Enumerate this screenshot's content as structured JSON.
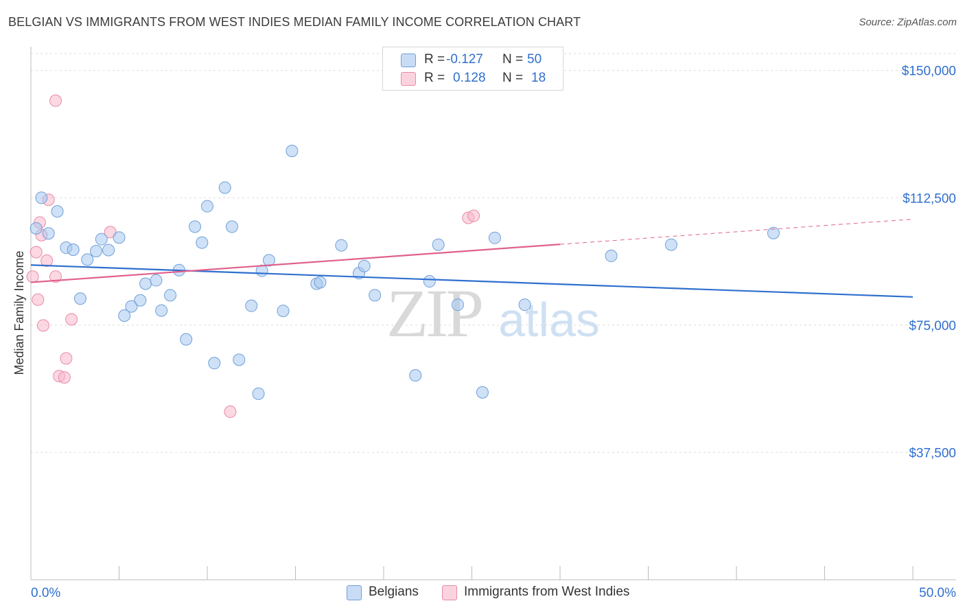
{
  "title": "BELGIAN VS IMMIGRANTS FROM WEST INDIES MEDIAN FAMILY INCOME CORRELATION CHART",
  "source": "Source: ZipAtlas.com",
  "watermark": {
    "zip": "ZIP",
    "atlas": "atlas"
  },
  "legend": {
    "rows": [
      {
        "r_label": "R =",
        "r_value": "-0.127",
        "n_label": "N =",
        "n_value": "50",
        "color": "#a8c8f0"
      },
      {
        "r_label": "R =",
        "r_value": "0.128",
        "n_label": "N =",
        "n_value": "18",
        "color": "#f7b8ca"
      }
    ]
  },
  "bottom_legend": {
    "belgians": "Belgians",
    "west_indies": "Immigrants from West Indies"
  },
  "colors": {
    "belgian_fill": "#a8c8f0",
    "belgian_stroke": "#6f9fd8",
    "belgian_line": "#2f6fce",
    "wi_fill": "#f7b8ca",
    "wi_stroke": "#e88aa8",
    "wi_line": "#e0608c",
    "axis_label": "#2f6fce",
    "grid": "#d9d9d9"
  },
  "chart_data": {
    "type": "scatter",
    "title": "BELGIAN VS IMMIGRANTS FROM WEST INDIES MEDIAN FAMILY INCOME CORRELATION CHART",
    "xlabel": "",
    "ylabel": "Median Family Income",
    "xlim": [
      0,
      50
    ],
    "ylim": [
      0,
      155000
    ],
    "x_tick_labels": [
      "0.0%",
      "50.0%"
    ],
    "y_ticks": [
      37500,
      75000,
      112500,
      150000
    ],
    "y_tick_labels": [
      "$37,500",
      "$75,000",
      "$112,500",
      "$150,000"
    ],
    "grid": true,
    "legend_position": "top-center",
    "series": [
      {
        "name": "Belgians",
        "r": -0.127,
        "n": 50,
        "trend": {
          "x": [
            0,
            50
          ],
          "y": [
            92700,
            83300
          ]
        },
        "points": [
          [
            0.3,
            103500
          ],
          [
            0.6,
            112500
          ],
          [
            1.0,
            102000
          ],
          [
            1.5,
            108500
          ],
          [
            2.0,
            97800
          ],
          [
            2.4,
            97200
          ],
          [
            2.8,
            82800
          ],
          [
            3.2,
            94300
          ],
          [
            3.7,
            96800
          ],
          [
            4.0,
            100300
          ],
          [
            4.4,
            97100
          ],
          [
            5.0,
            100800
          ],
          [
            5.3,
            77800
          ],
          [
            5.7,
            80500
          ],
          [
            6.2,
            82300
          ],
          [
            6.5,
            87200
          ],
          [
            7.1,
            88200
          ],
          [
            7.4,
            79300
          ],
          [
            7.9,
            83800
          ],
          [
            8.4,
            91200
          ],
          [
            8.8,
            70800
          ],
          [
            9.3,
            104000
          ],
          [
            9.7,
            99300
          ],
          [
            10.0,
            110000
          ],
          [
            10.4,
            63800
          ],
          [
            11.0,
            115500
          ],
          [
            11.4,
            104000
          ],
          [
            11.8,
            64800
          ],
          [
            12.5,
            80700
          ],
          [
            12.9,
            54800
          ],
          [
            13.1,
            91000
          ],
          [
            13.5,
            94100
          ],
          [
            14.3,
            79200
          ],
          [
            14.8,
            126300
          ],
          [
            16.2,
            87200
          ],
          [
            16.4,
            87600
          ],
          [
            17.6,
            98500
          ],
          [
            18.6,
            90300
          ],
          [
            18.9,
            92400
          ],
          [
            19.5,
            83800
          ],
          [
            21.8,
            60200
          ],
          [
            22.6,
            87900
          ],
          [
            23.1,
            98700
          ],
          [
            24.2,
            81000
          ],
          [
            25.6,
            55200
          ],
          [
            26.3,
            100700
          ],
          [
            28.0,
            81000
          ],
          [
            32.9,
            95400
          ],
          [
            36.3,
            98700
          ],
          [
            42.1,
            102100
          ]
        ]
      },
      {
        "name": "Immigrants from West Indies",
        "r": 0.128,
        "n": 18,
        "trend": {
          "x": [
            0,
            30
          ],
          "y": [
            87600,
            98800
          ]
        },
        "trend_dashed": {
          "x": [
            30,
            50
          ],
          "y": [
            98800,
            106200
          ]
        },
        "points": [
          [
            0.1,
            89300
          ],
          [
            0.3,
            96500
          ],
          [
            0.4,
            82500
          ],
          [
            0.5,
            105200
          ],
          [
            0.6,
            101500
          ],
          [
            0.7,
            74900
          ],
          [
            0.9,
            94000
          ],
          [
            1.0,
            111900
          ],
          [
            1.4,
            89300
          ],
          [
            1.4,
            141100
          ],
          [
            1.6,
            60000
          ],
          [
            1.9,
            59600
          ],
          [
            2.0,
            65200
          ],
          [
            2.3,
            76700
          ],
          [
            4.5,
            102400
          ],
          [
            11.3,
            49500
          ],
          [
            24.8,
            106600
          ],
          [
            25.1,
            107200
          ]
        ]
      }
    ]
  }
}
